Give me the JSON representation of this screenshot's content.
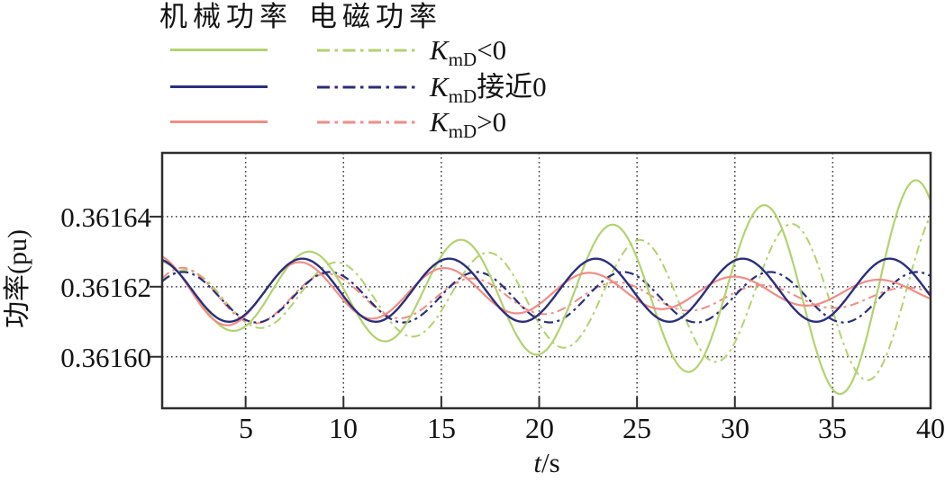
{
  "figure": {
    "background": "#ffffff",
    "y_axis_title": "功率(pu)",
    "x_axis_title_var": "t",
    "x_axis_title_rest": "/s"
  },
  "legend": {
    "col_mechanical": "机械功率",
    "col_electromagnetic": "电磁功率",
    "rows": [
      {
        "k": "K",
        "sub": "mD",
        "rest": "<0",
        "color": "#b3d26f"
      },
      {
        "k": "K",
        "sub": "mD",
        "rest": "接近0",
        "color": "#2b2e7b"
      },
      {
        "k": "K",
        "sub": "mD",
        "rest": ">0",
        "color": "#f08d85"
      }
    ]
  },
  "chart_data": {
    "type": "line",
    "title": "",
    "xlabel": "t/s",
    "ylabel": "功率(pu)",
    "x_range": [
      0.735,
      40
    ],
    "y_range": [
      0.3615853,
      0.3616582
    ],
    "grid": "dotted",
    "legend_position": "top-left outside",
    "colors": {
      "kmd_negative": "#b3d26f",
      "kmd_near_zero": "#2b2e7b",
      "kmd_positive": "#f08d85",
      "axis": "#2e2e2e",
      "grid": "#3c3c3c",
      "text": "#131313"
    },
    "x_ticks": [
      {
        "label": "5",
        "value": 5
      },
      {
        "label": "10",
        "value": 10
      },
      {
        "label": "15",
        "value": 15
      },
      {
        "label": "20",
        "value": 20
      },
      {
        "label": "25",
        "value": 25
      },
      {
        "label": "30",
        "value": 30
      },
      {
        "label": "35",
        "value": 35
      },
      {
        "label": "40",
        "value": 40
      }
    ],
    "y_ticks": [
      {
        "label": "0.36164",
        "value": 0.36164
      },
      {
        "label": "0.36162",
        "value": 0.36162
      },
      {
        "label": "0.36160",
        "value": 0.3616
      }
    ],
    "model": "y(t) = mean + amp * exp(growth*(t - amp_t)) * cos(2*pi*(t - peak_t)/period); damped/growing 0.13 Hz power swing curves",
    "series": [
      {
        "id": "mech-kmd-negative",
        "name": "机械功率 KmD<0",
        "color": "#b3d26f",
        "dash": "solid",
        "width": 2.2,
        "mean": 0.361618,
        "amp": 1.2e-05,
        "amp_t": 8.2,
        "growth": 0.032,
        "period": 7.75,
        "peak_t": 8.2
      },
      {
        "id": "mech-kmd-near-zero",
        "name": "机械功率 KmD接近0",
        "color": "#2b2e7b",
        "dash": "solid",
        "width": 2.4,
        "mean": 0.361619,
        "amp": 9e-06,
        "amp_t": 7.9,
        "growth": 0.0,
        "period": 7.5,
        "peak_t": 7.9
      },
      {
        "id": "mech-kmd-positive",
        "name": "机械功率 KmD>0",
        "color": "#f08d85",
        "dash": "solid",
        "width": 2.2,
        "mean": 0.3616185,
        "amp": 8.5e-06,
        "amp_t": 7.8,
        "growth": -0.03,
        "period": 7.4,
        "peak_t": 7.8
      },
      {
        "id": "em-kmd-negative",
        "name": "电磁功率 KmD<0",
        "color": "#b3d26f",
        "dash": "dashdot",
        "width": 2.0,
        "mean": 0.361617,
        "amp": 9.5e-06,
        "amp_t": 8.2,
        "growth": 0.032,
        "period": 7.75,
        "peak_t": 9.6
      },
      {
        "id": "em-kmd-near-zero",
        "name": "电磁功率 KmD接近0",
        "color": "#2b2e7b",
        "dash": "dashdot",
        "width": 2.2,
        "mean": 0.361617,
        "amp": 7.2e-06,
        "amp_t": 7.9,
        "growth": 0.0,
        "period": 7.5,
        "peak_t": 9.3
      },
      {
        "id": "em-kmd-positive",
        "name": "电磁功率 KmD>0",
        "color": "#f08d85",
        "dash": "dashdot",
        "width": 2.0,
        "mean": 0.361617,
        "amp": 7e-06,
        "amp_t": 7.8,
        "growth": -0.03,
        "period": 7.4,
        "peak_t": 9.2
      }
    ],
    "z_order": [
      3,
      5,
      4,
      0,
      2,
      1
    ]
  }
}
